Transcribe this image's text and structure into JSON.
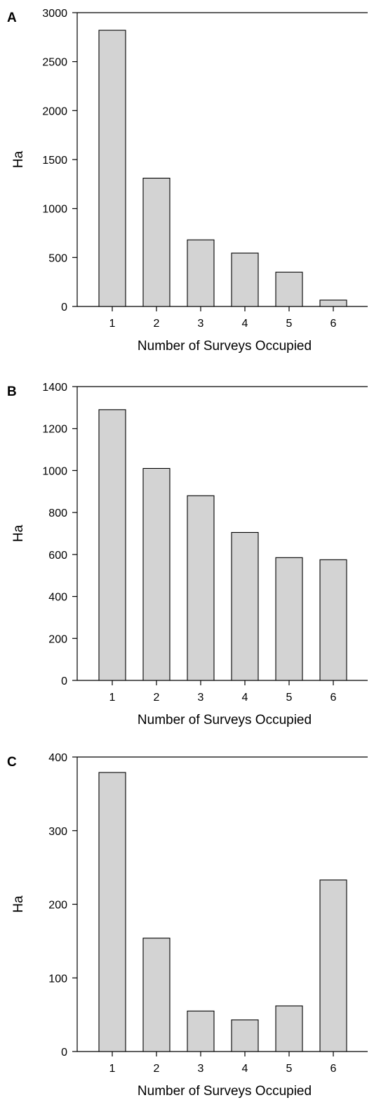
{
  "chart_data": [
    {
      "panel": "A",
      "type": "bar",
      "categories": [
        "1",
        "2",
        "3",
        "4",
        "5",
        "6"
      ],
      "values": [
        2820,
        1310,
        680,
        545,
        350,
        65
      ],
      "xlabel": "Number of Surveys Occupied",
      "ylabel": "Ha",
      "ylim": [
        0,
        3000
      ],
      "yticks": [
        0,
        500,
        1000,
        1500,
        2000,
        2500,
        3000
      ],
      "bar_color": "#d3d3d3",
      "grid": false
    },
    {
      "panel": "B",
      "type": "bar",
      "categories": [
        "1",
        "2",
        "3",
        "4",
        "5",
        "6"
      ],
      "values": [
        1290,
        1010,
        880,
        705,
        585,
        575
      ],
      "xlabel": "Number of Surveys Occupied",
      "ylabel": "Ha",
      "ylim": [
        0,
        1400
      ],
      "yticks": [
        0,
        200,
        400,
        600,
        800,
        1000,
        1200,
        1400
      ],
      "bar_color": "#d3d3d3",
      "grid": false
    },
    {
      "panel": "C",
      "type": "bar",
      "categories": [
        "1",
        "2",
        "3",
        "4",
        "5",
        "6"
      ],
      "values": [
        379,
        154,
        55,
        43,
        62,
        233
      ],
      "xlabel": "Number of Surveys Occupied",
      "ylabel": "Ha",
      "ylim": [
        0,
        400
      ],
      "yticks": [
        0,
        100,
        200,
        300,
        400
      ],
      "bar_color": "#d3d3d3",
      "grid": false
    }
  ]
}
